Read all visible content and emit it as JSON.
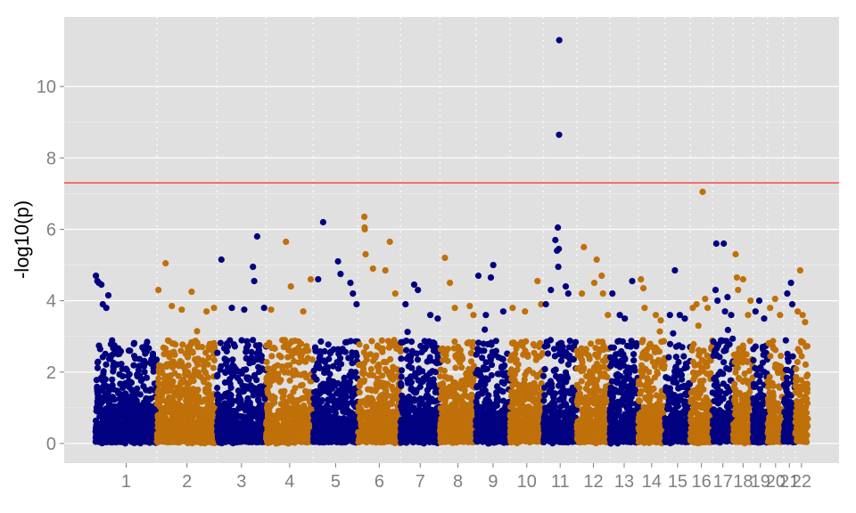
{
  "chart_data": {
    "type": "scatter",
    "title": "",
    "xlabel": "",
    "ylabel": "-log10(p)",
    "ylim": [
      -0.55,
      11.95
    ],
    "yticks": [
      0,
      2,
      4,
      6,
      8,
      10
    ],
    "grid": true,
    "legend": "none",
    "threshold_line": {
      "y": 7.3,
      "color": "#ff3030"
    },
    "colors": {
      "odd": "#000080",
      "even": "#c07008",
      "panel": "#e0e0e0",
      "grid": "#ffffff"
    },
    "chromosomes": [
      {
        "label": "1",
        "range": [
          0,
          248
        ],
        "max_bulk": 3.6,
        "peaks": [
          [
            2,
            4.7
          ],
          [
            8,
            4.55
          ],
          [
            14,
            4.5
          ],
          [
            24,
            4.45
          ],
          [
            52,
            4.15
          ],
          [
            30,
            3.9
          ],
          [
            44,
            3.8
          ]
        ]
      },
      {
        "label": "2",
        "range": [
          248,
          490
        ],
        "max_bulk": 3.6,
        "peaks": [
          [
            6,
            4.3
          ],
          [
            35,
            5.05
          ],
          [
            60,
            3.85
          ],
          [
            100,
            3.75
          ],
          [
            140,
            4.25
          ],
          [
            200,
            3.7
          ],
          [
            230,
            3.8
          ]
        ]
      },
      {
        "label": "3",
        "range": [
          490,
          688
        ],
        "max_bulk": 3.5,
        "peaks": [
          [
            18,
            5.15
          ],
          [
            60,
            3.8
          ],
          [
            110,
            3.75
          ],
          [
            145,
            4.95
          ],
          [
            150,
            4.55
          ],
          [
            162,
            5.8
          ],
          [
            190,
            3.8
          ]
        ]
      },
      {
        "label": "4",
        "range": [
          688,
          878
        ],
        "max_bulk": 3.4,
        "peaks": [
          [
            20,
            3.75
          ],
          [
            80,
            5.65
          ],
          [
            100,
            4.4
          ],
          [
            150,
            3.7
          ],
          [
            180,
            4.6
          ]
        ]
      },
      {
        "label": "5",
        "range": [
          878,
          1059
        ],
        "max_bulk": 3.6,
        "peaks": [
          [
            20,
            4.6
          ],
          [
            40,
            6.2
          ],
          [
            100,
            5.1
          ],
          [
            110,
            4.75
          ],
          [
            150,
            4.5
          ],
          [
            160,
            4.2
          ],
          [
            175,
            3.9
          ]
        ]
      },
      {
        "label": "6",
        "range": [
          1059,
          1230
        ],
        "max_bulk": 3.7,
        "peaks": [
          [
            25,
            6.35
          ],
          [
            26,
            6.05
          ],
          [
            27,
            6.0
          ],
          [
            30,
            5.3
          ],
          [
            60,
            4.9
          ],
          [
            110,
            4.85
          ],
          [
            128,
            5.65
          ],
          [
            150,
            4.2
          ]
        ]
      },
      {
        "label": "7",
        "range": [
          1230,
          1389
        ],
        "max_bulk": 3.5,
        "peaks": [
          [
            20,
            3.9
          ],
          [
            55,
            4.45
          ],
          [
            70,
            4.3
          ],
          [
            120,
            3.6
          ],
          [
            150,
            3.5
          ]
        ]
      },
      {
        "label": "8",
        "range": [
          1389,
          1534
        ],
        "max_bulk": 3.3,
        "peaks": [
          [
            20,
            5.2
          ],
          [
            40,
            4.5
          ],
          [
            60,
            3.8
          ],
          [
            120,
            3.85
          ],
          [
            135,
            3.6
          ]
        ]
      },
      {
        "label": "9",
        "range": [
          1534,
          1672
        ],
        "max_bulk": 3.3,
        "peaks": [
          [
            10,
            4.7
          ],
          [
            40,
            3.6
          ],
          [
            60,
            4.65
          ],
          [
            70,
            5.0
          ],
          [
            110,
            3.7
          ]
        ]
      },
      {
        "label": "10",
        "range": [
          1672,
          1806
        ],
        "max_bulk": 3.5,
        "peaks": [
          [
            10,
            3.8
          ],
          [
            60,
            3.7
          ],
          [
            110,
            4.55
          ],
          [
            125,
            3.9
          ]
        ]
      },
      {
        "label": "11",
        "range": [
          1806,
          1941
        ],
        "max_bulk": 3.7,
        "peaks": [
          [
            10,
            3.9
          ],
          [
            30,
            4.3
          ],
          [
            48,
            5.7
          ],
          [
            55,
            5.4
          ],
          [
            58,
            6.05
          ],
          [
            62,
            5.45
          ],
          [
            60,
            4.95
          ],
          [
            63,
            8.65
          ],
          [
            64,
            11.3
          ],
          [
            90,
            4.4
          ],
          [
            100,
            4.2
          ]
        ]
      },
      {
        "label": "12",
        "range": [
          1941,
          2074
        ],
        "max_bulk": 3.7,
        "peaks": [
          [
            20,
            4.2
          ],
          [
            28,
            5.5
          ],
          [
            70,
            4.5
          ],
          [
            80,
            5.15
          ],
          [
            100,
            4.7
          ],
          [
            105,
            4.2
          ],
          [
            125,
            3.6
          ]
        ]
      },
      {
        "label": "13",
        "range": [
          2074,
          2189
        ],
        "max_bulk": 3.3,
        "peaks": [
          [
            10,
            4.2
          ],
          [
            40,
            3.6
          ],
          [
            60,
            3.5
          ],
          [
            90,
            4.55
          ]
        ]
      },
      {
        "label": "14",
        "range": [
          2189,
          2296
        ],
        "max_bulk": 3.2,
        "peaks": [
          [
            10,
            4.6
          ],
          [
            20,
            4.35
          ],
          [
            25,
            3.8
          ],
          [
            70,
            3.6
          ],
          [
            90,
            3.45
          ]
        ]
      },
      {
        "label": "15",
        "range": [
          2296,
          2398
        ],
        "max_bulk": 3.1,
        "peaks": [
          [
            20,
            3.6
          ],
          [
            40,
            4.85
          ],
          [
            60,
            3.6
          ],
          [
            80,
            3.5
          ]
        ]
      },
      {
        "label": "16",
        "range": [
          2398,
          2488
        ],
        "max_bulk": 3.3,
        "peaks": [
          [
            10,
            3.8
          ],
          [
            25,
            3.9
          ],
          [
            50,
            7.05
          ],
          [
            60,
            4.05
          ],
          [
            70,
            3.8
          ]
        ]
      },
      {
        "label": "17",
        "range": [
          2488,
          2571
        ],
        "max_bulk": 3.4,
        "peaks": [
          [
            12,
            4.3
          ],
          [
            15,
            5.6
          ],
          [
            20,
            4.0
          ],
          [
            45,
            5.6
          ],
          [
            50,
            3.7
          ],
          [
            60,
            4.1
          ],
          [
            75,
            3.6
          ]
        ]
      },
      {
        "label": "18",
        "range": [
          2571,
          2651
        ],
        "max_bulk": 3.2,
        "peaks": [
          [
            10,
            5.3
          ],
          [
            15,
            4.65
          ],
          [
            20,
            4.3
          ],
          [
            40,
            4.6
          ],
          [
            60,
            3.6
          ],
          [
            70,
            4.0
          ]
        ]
      },
      {
        "label": "19",
        "range": [
          2651,
          2710
        ],
        "max_bulk": 3.2,
        "peaks": [
          [
            10,
            3.7
          ],
          [
            25,
            4.0
          ],
          [
            45,
            3.5
          ]
        ]
      },
      {
        "label": "20",
        "range": [
          2710,
          2774
        ],
        "max_bulk": 3.2,
        "peaks": [
          [
            10,
            3.8
          ],
          [
            30,
            4.05
          ],
          [
            50,
            3.6
          ]
        ]
      },
      {
        "label": "21",
        "range": [
          2774,
          2821
        ],
        "max_bulk": 3.1,
        "peaks": [
          [
            15,
            4.2
          ],
          [
            30,
            4.5
          ],
          [
            35,
            3.9
          ]
        ]
      },
      {
        "label": "22",
        "range": [
          2821,
          2872
        ],
        "max_bulk": 3.2,
        "peaks": [
          [
            10,
            3.7
          ],
          [
            20,
            4.85
          ],
          [
            30,
            3.6
          ],
          [
            40,
            3.4
          ]
        ]
      }
    ]
  }
}
